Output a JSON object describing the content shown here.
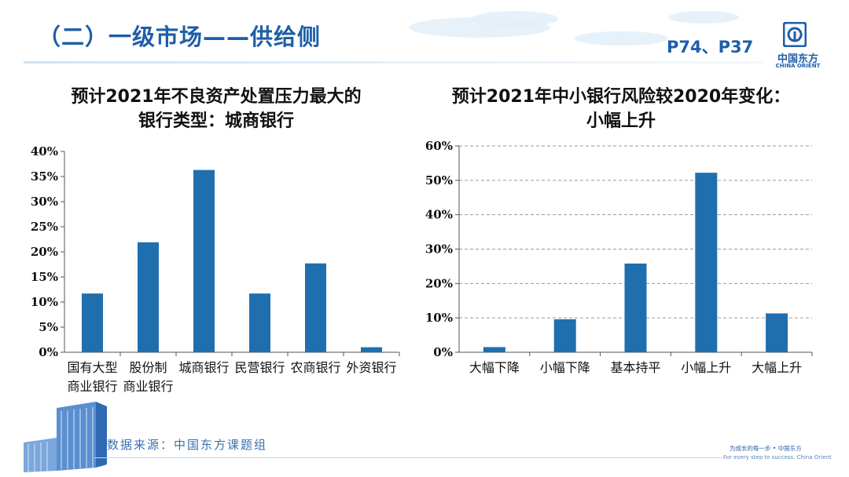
{
  "header": {
    "title": "（二）一级市场——供给侧",
    "pages": "P74、P37",
    "logo_cn": "中国东方",
    "logo_en": "CHINA ORIENT"
  },
  "colors": {
    "bar": "#1f6faf",
    "accent": "#1e5ea8"
  },
  "left_title": {
    "line1": "预计2021年不良资产处置压力最大的",
    "line2": "银行类型：城商银行"
  },
  "right_title": {
    "line1": "预计2021年中小银行风险较2020年变化：",
    "line2": "小幅上升"
  },
  "chart_data": [
    {
      "type": "bar",
      "title": "预计2021年不良资产处置压力最大的银行类型：城商银行",
      "categories": [
        [
          "国有大型",
          "商业银行"
        ],
        [
          "股份制",
          "商业银行"
        ],
        [
          "城商银行"
        ],
        [
          "民营银行"
        ],
        [
          "农商银行"
        ],
        [
          "外资银行"
        ]
      ],
      "values": [
        11.7,
        21.9,
        36.3,
        11.7,
        17.7,
        1.0
      ],
      "yticks": [
        "0%",
        "5%",
        "10%",
        "15%",
        "20%",
        "25%",
        "30%",
        "35%",
        "40%"
      ],
      "ylim": [
        0,
        40
      ],
      "grid": false
    },
    {
      "type": "bar",
      "title": "预计2021年中小银行风险较2020年变化：小幅上升",
      "categories": [
        [
          "大幅下降"
        ],
        [
          "小幅下降"
        ],
        [
          "基本持平"
        ],
        [
          "小幅上升"
        ],
        [
          "大幅上升"
        ]
      ],
      "values": [
        1.5,
        9.6,
        25.8,
        52.2,
        11.3
      ],
      "yticks": [
        "0%",
        "10%",
        "20%",
        "30%",
        "40%",
        "50%",
        "60%"
      ],
      "ylim": [
        0,
        60
      ],
      "grid": true
    }
  ],
  "footer": {
    "source": "数据来源：中国东方课题组",
    "slogan_cn": "为成长的每一步 • 中国东方",
    "slogan_en": "For every step to success. China Orient"
  }
}
